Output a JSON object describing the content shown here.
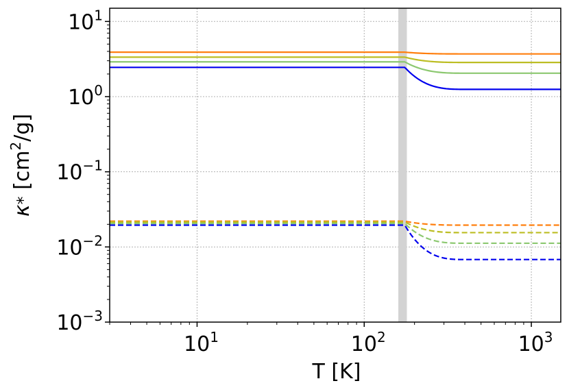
{
  "chart_data": {
    "type": "line",
    "xlabel": "T [K]",
    "ylabel": "κ* [cm²/g]",
    "xscale": "log",
    "yscale": "log",
    "xlim": [
      3,
      1500
    ],
    "ylim": [
      0.001,
      15
    ],
    "grid": true,
    "x_ticks": [
      {
        "base": "10",
        "exp": "1",
        "value": 10
      },
      {
        "base": "10",
        "exp": "2",
        "value": 100
      },
      {
        "base": "10",
        "exp": "3",
        "value": 1000
      }
    ],
    "y_ticks": [
      {
        "base": "10",
        "exp": "−3",
        "value": 0.001
      },
      {
        "base": "10",
        "exp": "−2",
        "value": 0.01
      },
      {
        "base": "10",
        "exp": "−1",
        "value": 0.1
      },
      {
        "base": "10",
        "exp": "0",
        "value": 1
      },
      {
        "base": "10",
        "exp": "1",
        "value": 10
      }
    ],
    "shaded_band": {
      "x_range": [
        160,
        180
      ],
      "color": "#d3d3d3"
    },
    "transition": {
      "start": 175,
      "end": 400
    },
    "series": [
      {
        "color": "#ff7f0e",
        "style": "solid",
        "low_T_value": 3.9,
        "high_T_value": 3.7
      },
      {
        "color": "#bcbd22",
        "style": "solid",
        "low_T_value": 3.35,
        "high_T_value": 2.85
      },
      {
        "color": "#8cc870",
        "style": "solid",
        "low_T_value": 2.9,
        "high_T_value": 2.05
      },
      {
        "color": "#0000ee",
        "style": "solid",
        "low_T_value": 2.45,
        "high_T_value": 1.25
      },
      {
        "color": "#ff7f0e",
        "style": "dashed",
        "low_T_value": 0.022,
        "high_T_value": 0.0195
      },
      {
        "color": "#bcbd22",
        "style": "dashed",
        "low_T_value": 0.0215,
        "high_T_value": 0.0155
      },
      {
        "color": "#8cc870",
        "style": "dashed",
        "low_T_value": 0.0205,
        "high_T_value": 0.0112
      },
      {
        "color": "#0000ee",
        "style": "dashed",
        "low_T_value": 0.0195,
        "high_T_value": 0.0068
      }
    ]
  }
}
